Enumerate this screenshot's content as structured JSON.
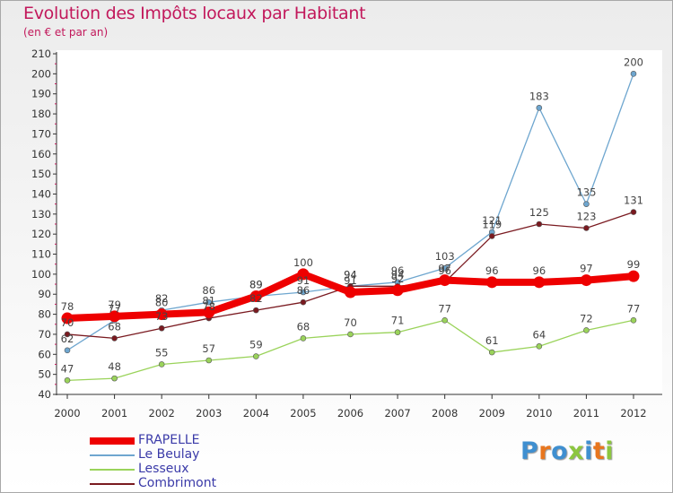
{
  "title": "Evolution des Impôts locaux par Habitant",
  "subtitle": "(en € et par an)",
  "logo": {
    "text": "Proxiti",
    "colors": [
      "#3f8fd0",
      "#e8761e",
      "#3f8fd0",
      "#8cc63f",
      "#3f8fd0",
      "#e8761e",
      "#8cc63f"
    ]
  },
  "chart_data": {
    "type": "line",
    "title": "Evolution des Impôts locaux par Habitant",
    "subtitle": "(en € et par an)",
    "xlabel": "",
    "ylabel": "",
    "x": [
      "2000",
      "2001",
      "2002",
      "2003",
      "2004",
      "2005",
      "2006",
      "2007",
      "2008",
      "2009",
      "2010",
      "2011",
      "2012"
    ],
    "ylim": [
      40,
      210
    ],
    "ytick_step": 10,
    "grid": false,
    "legend_position": "bottom-left",
    "series": [
      {
        "name": "Le Beulay",
        "color": "#6ea6cf",
        "values": [
          62,
          77,
          82,
          86,
          89,
          91,
          94,
          96,
          103,
          121,
          183,
          135,
          200
        ],
        "labels": [
          "62",
          "77",
          "82",
          "86",
          "89",
          "91",
          "94",
          "96",
          "103",
          "121",
          "183",
          "135",
          "200"
        ]
      },
      {
        "name": "Lesseux",
        "color": "#9ad35a",
        "values": [
          47,
          48,
          55,
          57,
          59,
          68,
          70,
          71,
          77,
          61,
          64,
          72,
          77
        ],
        "labels": [
          "47",
          "48",
          "55",
          "57",
          "59",
          "68",
          "70",
          "71",
          "77",
          "61",
          "64",
          "72",
          "77"
        ]
      },
      {
        "name": "Combrimont",
        "color": "#7a1a20",
        "values": [
          70,
          68,
          73,
          78,
          82,
          86,
          94,
          94,
          96,
          119,
          125,
          123,
          131
        ],
        "labels": [
          "70",
          "68",
          "73",
          "78",
          "82",
          "86",
          "94",
          "94",
          "96",
          "119",
          "125",
          "123",
          "131"
        ]
      },
      {
        "name": "FRAPELLE",
        "color": "#ee0000",
        "values": [
          78,
          79,
          80,
          81,
          89,
          100,
          91,
          92,
          97,
          96,
          96,
          97,
          99
        ],
        "labels": [
          "78",
          "79",
          "80",
          "81",
          "89",
          "100",
          "91",
          "92",
          "97",
          "96",
          "96",
          "97",
          "99"
        ]
      }
    ],
    "legend": [
      "FRAPELLE",
      "Le Beulay",
      "Lesseux",
      "Combrimont"
    ]
  }
}
